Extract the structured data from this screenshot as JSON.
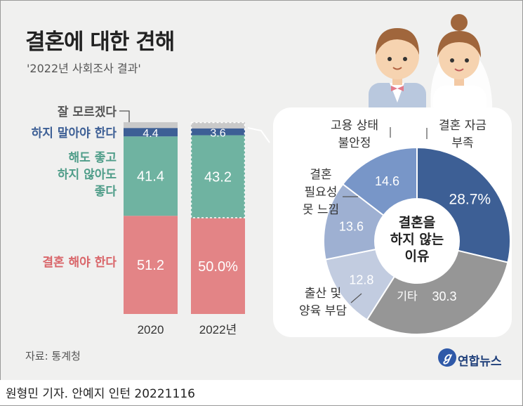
{
  "header": {
    "title": "결혼에 대한 견해",
    "subtitle": "'2022년 사회조사 결과'"
  },
  "footer": {
    "source": "자료: 통계청",
    "credit": "원형민 기자. 안예지 인턴  20221116",
    "logo": "연합뉴스"
  },
  "colors": {
    "must_marry": "#e38486",
    "either": "#6fb3a1",
    "not_marry": "#3d5f95",
    "dont_know": "#c9c9c9",
    "donut_ring1": "#3d5f95",
    "donut_ring2": "#969696",
    "donut_ring3": "#c2cce0",
    "donut_ring4": "#9eb0d2",
    "donut_ring5": "#7896c8"
  },
  "chart_data": [
    {
      "type": "bar",
      "stacked": true,
      "categories": [
        "2020",
        "2022년"
      ],
      "series": [
        {
          "name": "결혼 해야 한다",
          "values": [
            51.2,
            50.0
          ],
          "labels": [
            "51.2",
            "50.0%"
          ]
        },
        {
          "name": "해도 좋고 하지 않아도 좋다",
          "values": [
            41.4,
            43.2
          ],
          "labels": [
            "41.4",
            "43.2"
          ]
        },
        {
          "name": "하지 말아야 한다",
          "values": [
            4.4,
            3.6
          ],
          "labels": [
            "4.4",
            "3.6"
          ]
        },
        {
          "name": "잘 모르겠다",
          "values": [
            3.0,
            3.2
          ],
          "labels": [
            "",
            ""
          ]
        }
      ],
      "ylim": [
        0,
        100
      ],
      "legend": {
        "dont_know": "잘 모르겠다",
        "not_marry": "하지 말아야 한다",
        "either_lines": [
          "해도 좋고",
          "하지 않아도",
          "좋다"
        ],
        "must_marry": "결혼 해야 한다"
      }
    },
    {
      "type": "pie",
      "donut": true,
      "center_label_lines": [
        "결혼을",
        "하지 않는",
        "이유"
      ],
      "slices": [
        {
          "name_lines": [
            "결혼 자금",
            "부족"
          ],
          "value": 28.7,
          "label": "28.7%"
        },
        {
          "name_lines": [
            "기타"
          ],
          "value": 30.3,
          "label": "30.3"
        },
        {
          "name_lines": [
            "출산 및",
            "양육 부담"
          ],
          "value": 12.8,
          "label": "12.8"
        },
        {
          "name_lines": [
            "결혼",
            "필요성",
            "못 느낌"
          ],
          "value": 13.6,
          "label": "13.6"
        },
        {
          "name_lines": [
            "고용 상태",
            "불안정"
          ],
          "value": 14.6,
          "label": "14.6"
        }
      ]
    }
  ]
}
